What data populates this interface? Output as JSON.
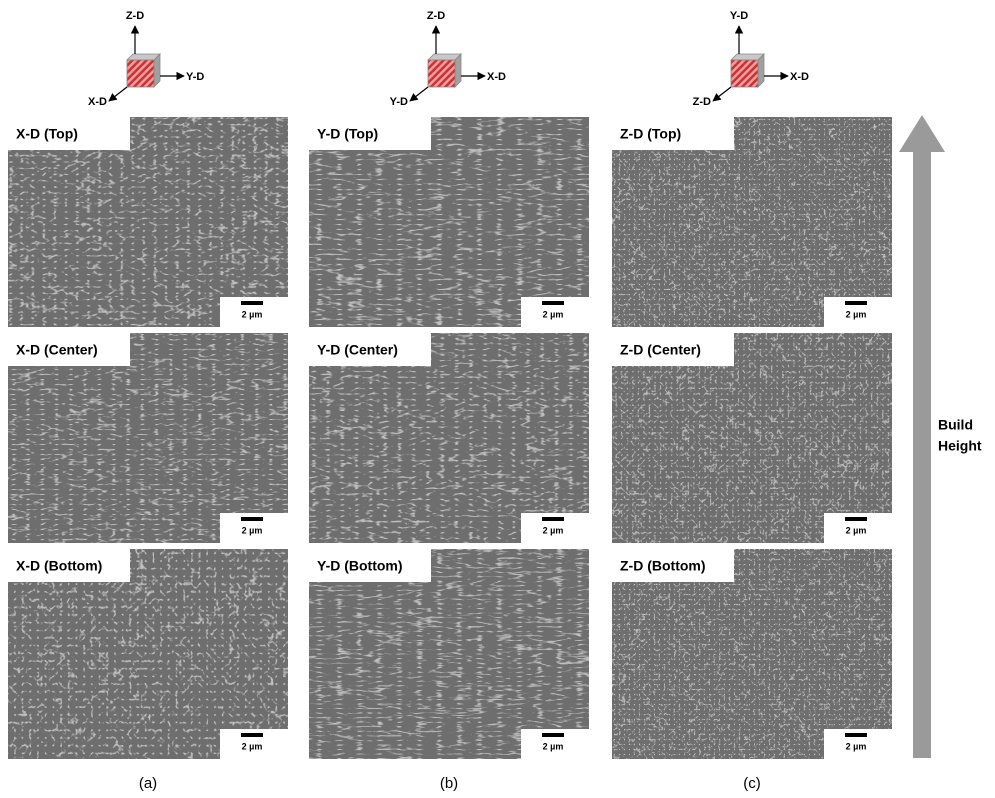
{
  "columns": [
    {
      "axes": {
        "up": "Z-D",
        "right": "Y-D",
        "diagonal": "X-D"
      },
      "panels": [
        {
          "label": "X-D (Top)",
          "scale": "2 µm"
        },
        {
          "label": "X-D (Center)",
          "scale": "2 µm"
        },
        {
          "label": "X-D (Bottom)",
          "scale": "2 µm"
        }
      ],
      "caption": "(a)"
    },
    {
      "axes": {
        "up": "Z-D",
        "right": "X-D",
        "diagonal": "Y-D"
      },
      "panels": [
        {
          "label": "Y-D (Top)",
          "scale": "2 µm"
        },
        {
          "label": "Y-D (Center)",
          "scale": "2 µm"
        },
        {
          "label": "Y-D (Bottom)",
          "scale": "2 µm"
        }
      ],
      "caption": "(b)"
    },
    {
      "axes": {
        "up": "Y-D",
        "right": "X-D",
        "diagonal": "Z-D"
      },
      "panels": [
        {
          "label": "Z-D (Top)",
          "scale": "2 µm"
        },
        {
          "label": "Z-D (Center)",
          "scale": "2 µm"
        },
        {
          "label": "Z-D (Bottom)",
          "scale": "2 µm"
        }
      ],
      "caption": "(c)"
    }
  ],
  "build_height": [
    "Build",
    "Height"
  ]
}
